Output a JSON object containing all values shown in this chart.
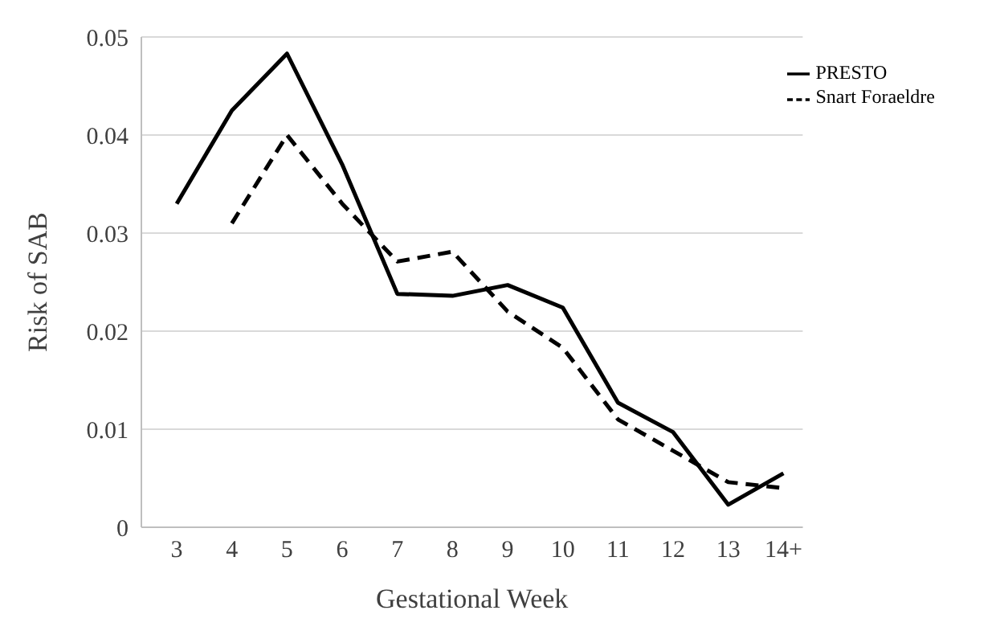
{
  "chart_data": {
    "type": "line",
    "xlabel": "Gestational  Week",
    "ylabel": "Risk of SAB",
    "categories": [
      "3",
      "4",
      "5",
      "6",
      "7",
      "8",
      "9",
      "10",
      "11",
      "12",
      "13",
      "14+"
    ],
    "series": [
      {
        "name": "PRESTO",
        "color": "#000000",
        "line_style": "solid",
        "values": [
          0.033,
          0.0425,
          0.0483,
          0.037,
          0.0238,
          0.0236,
          0.0247,
          0.0224,
          0.0127,
          0.0097,
          0.0023,
          0.0055
        ]
      },
      {
        "name": "Snart Foraeldre",
        "color": "#000000",
        "line_style": "dashed",
        "values": [
          null,
          0.031,
          0.04,
          0.033,
          0.0271,
          0.0281,
          0.022,
          0.0183,
          0.011,
          0.0078,
          0.0046,
          0.004
        ]
      }
    ],
    "ylim": [
      0,
      0.05
    ],
    "yticks": [
      0,
      0.01,
      0.02,
      0.03,
      0.04,
      0.05
    ],
    "grid": "y",
    "legend": "top right",
    "marker": "none"
  }
}
